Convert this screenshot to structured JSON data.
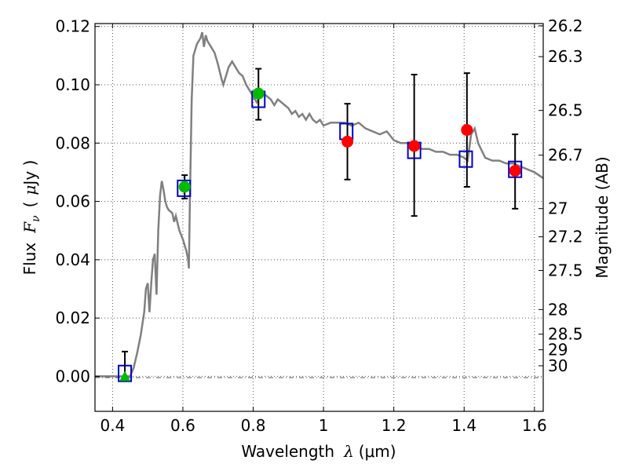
{
  "chart_data": {
    "type": "scatter",
    "xlabel": "Wavelength",
    "xlabel_symbol": "λ",
    "xlabel_unit": "(μm)",
    "ylabel": "Flux",
    "ylabel_symbol": "F",
    "ylabel_subscript": "ν",
    "ylabel_unit_open": "(",
    "ylabel_unit_mu": "μ",
    "ylabel_unit_rest": "Jy )",
    "y2label": "Magnitude (AB)",
    "xlim": [
      0.35,
      1.625
    ],
    "ylim": [
      -0.012,
      0.121
    ],
    "grid": true,
    "x_ticks": [
      "0.4",
      "0.6",
      "0.8",
      "1",
      "1.2",
      "1.4",
      "1.6"
    ],
    "y_ticks": [
      "0.00",
      "0.02",
      "0.04",
      "0.06",
      "0.08",
      "0.10",
      "0.12"
    ],
    "y2_ticks": [
      "26.2",
      "26.3",
      "26.5",
      "26.7",
      "27",
      "27.2",
      "27.5",
      "28",
      "28.5",
      "29",
      "30"
    ],
    "colors": {
      "model": "#808080",
      "model_points": "#0000cc",
      "green_points": "#00bb00",
      "red_points": "#ff0000",
      "errorbar": "#000000",
      "grid": "#555555"
    },
    "series": [
      {
        "kind": "model-spectrum-line",
        "points": [
          [
            0.35,
            0.0
          ],
          [
            0.45,
            0.0
          ],
          [
            0.46,
            0.003
          ],
          [
            0.47,
            0.008
          ],
          [
            0.48,
            0.014
          ],
          [
            0.49,
            0.022
          ],
          [
            0.495,
            0.03
          ],
          [
            0.5,
            0.032
          ],
          [
            0.505,
            0.022
          ],
          [
            0.51,
            0.032
          ],
          [
            0.515,
            0.04
          ],
          [
            0.52,
            0.042
          ],
          [
            0.525,
            0.028
          ],
          [
            0.53,
            0.05
          ],
          [
            0.535,
            0.062
          ],
          [
            0.54,
            0.067
          ],
          [
            0.545,
            0.064
          ],
          [
            0.55,
            0.06
          ],
          [
            0.555,
            0.058
          ],
          [
            0.56,
            0.057
          ],
          [
            0.57,
            0.056
          ],
          [
            0.575,
            0.053
          ],
          [
            0.58,
            0.055
          ],
          [
            0.59,
            0.05
          ],
          [
            0.6,
            0.047
          ],
          [
            0.61,
            0.043
          ],
          [
            0.615,
            0.04
          ],
          [
            0.617,
            0.037
          ],
          [
            0.62,
            0.06
          ],
          [
            0.625,
            0.095
          ],
          [
            0.63,
            0.11
          ],
          [
            0.64,
            0.114
          ],
          [
            0.65,
            0.116
          ],
          [
            0.655,
            0.118
          ],
          [
            0.66,
            0.113
          ],
          [
            0.665,
            0.117
          ],
          [
            0.67,
            0.115
          ],
          [
            0.68,
            0.113
          ],
          [
            0.69,
            0.111
          ],
          [
            0.7,
            0.107
          ],
          [
            0.71,
            0.102
          ],
          [
            0.715,
            0.1
          ],
          [
            0.72,
            0.102
          ],
          [
            0.73,
            0.106
          ],
          [
            0.74,
            0.108
          ],
          [
            0.75,
            0.106
          ],
          [
            0.76,
            0.104
          ],
          [
            0.77,
            0.103
          ],
          [
            0.78,
            0.1
          ],
          [
            0.79,
            0.098
          ],
          [
            0.8,
            0.096
          ],
          [
            0.81,
            0.094
          ],
          [
            0.82,
            0.096
          ],
          [
            0.83,
            0.097
          ],
          [
            0.84,
            0.096
          ],
          [
            0.85,
            0.095
          ],
          [
            0.86,
            0.093
          ],
          [
            0.87,
            0.095
          ],
          [
            0.88,
            0.094
          ],
          [
            0.89,
            0.093
          ],
          [
            0.9,
            0.092
          ],
          [
            0.91,
            0.09
          ],
          [
            0.92,
            0.091
          ],
          [
            0.93,
            0.089
          ],
          [
            0.94,
            0.09
          ],
          [
            0.95,
            0.088
          ],
          [
            0.96,
            0.09
          ],
          [
            0.97,
            0.088
          ],
          [
            0.98,
            0.087
          ],
          [
            0.99,
            0.088
          ],
          [
            1.0,
            0.086
          ],
          [
            1.02,
            0.087
          ],
          [
            1.04,
            0.087
          ],
          [
            1.06,
            0.087
          ],
          [
            1.08,
            0.086
          ],
          [
            1.1,
            0.087
          ],
          [
            1.12,
            0.085
          ],
          [
            1.14,
            0.084
          ],
          [
            1.16,
            0.083
          ],
          [
            1.18,
            0.084
          ],
          [
            1.2,
            0.081
          ],
          [
            1.22,
            0.08
          ],
          [
            1.24,
            0.08
          ],
          [
            1.26,
            0.079
          ],
          [
            1.28,
            0.078
          ],
          [
            1.3,
            0.078
          ],
          [
            1.32,
            0.077
          ],
          [
            1.34,
            0.077
          ],
          [
            1.36,
            0.076
          ],
          [
            1.38,
            0.076
          ],
          [
            1.4,
            0.075
          ],
          [
            1.41,
            0.074
          ],
          [
            1.42,
            0.083
          ],
          [
            1.43,
            0.085
          ],
          [
            1.44,
            0.08
          ],
          [
            1.46,
            0.075
          ],
          [
            1.48,
            0.074
          ],
          [
            1.5,
            0.074
          ],
          [
            1.52,
            0.073
          ],
          [
            1.54,
            0.073
          ],
          [
            1.56,
            0.072
          ],
          [
            1.58,
            0.071
          ],
          [
            1.6,
            0.07
          ],
          [
            1.625,
            0.068
          ]
        ]
      },
      {
        "kind": "model-photometry-squares",
        "points": [
          [
            0.435,
            0.001
          ],
          [
            0.603,
            0.0645
          ],
          [
            0.815,
            0.095
          ],
          [
            1.065,
            0.084
          ],
          [
            1.258,
            0.0775
          ],
          [
            1.405,
            0.0745
          ],
          [
            1.545,
            0.071
          ]
        ]
      },
      {
        "kind": "observed-green",
        "marker": "circle",
        "points": [
          [
            0.605,
            0.065
          ],
          [
            0.815,
            0.097
          ]
        ]
      },
      {
        "kind": "observed-green-upper-limit",
        "marker": "triangle",
        "points": [
          [
            0.435,
            0.0
          ]
        ]
      },
      {
        "kind": "observed-red",
        "marker": "circle",
        "points": [
          [
            1.068,
            0.0805
          ],
          [
            1.258,
            0.079
          ],
          [
            1.408,
            0.0845
          ],
          [
            1.545,
            0.0705
          ]
        ]
      },
      {
        "kind": "error-bars",
        "bars": [
          {
            "x": 0.435,
            "low": -0.001,
            "high": 0.0085
          },
          {
            "x": 0.605,
            "low": 0.061,
            "high": 0.069
          },
          {
            "x": 0.815,
            "low": 0.088,
            "high": 0.1055
          },
          {
            "x": 1.068,
            "low": 0.0675,
            "high": 0.0935
          },
          {
            "x": 1.258,
            "low": 0.055,
            "high": 0.1035
          },
          {
            "x": 1.408,
            "low": 0.065,
            "high": 0.104
          },
          {
            "x": 1.545,
            "low": 0.0575,
            "high": 0.083
          }
        ]
      }
    ]
  }
}
